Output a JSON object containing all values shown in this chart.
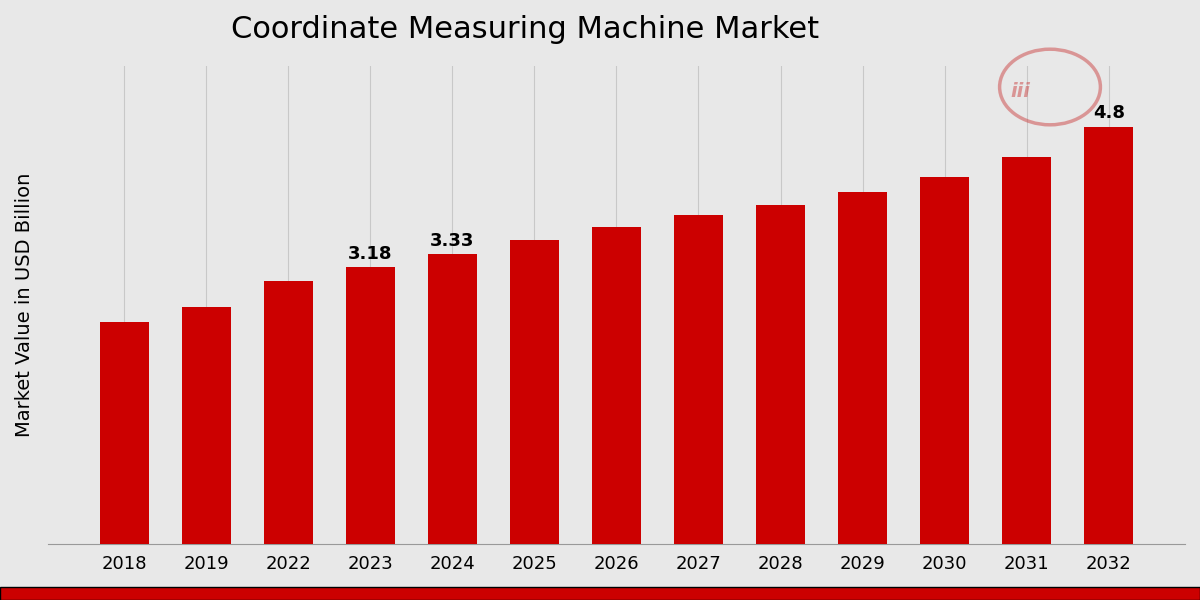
{
  "categories": [
    "2018",
    "2019",
    "2022",
    "2023",
    "2024",
    "2025",
    "2026",
    "2027",
    "2028",
    "2029",
    "2030",
    "2031",
    "2032"
  ],
  "values": [
    2.55,
    2.72,
    3.02,
    3.18,
    3.33,
    3.5,
    3.65,
    3.78,
    3.9,
    4.05,
    4.22,
    4.45,
    4.8
  ],
  "bar_color": "#CC0000",
  "labeled_bars": {
    "2023": "3.18",
    "2024": "3.33",
    "2032": "4.8"
  },
  "title": "Coordinate Measuring Machine Market",
  "ylabel": "Market Value in USD Billion",
  "bg_color": "#E8E8E8",
  "title_fontsize": 22,
  "label_fontsize": 13,
  "tick_fontsize": 13,
  "ylabel_fontsize": 14,
  "ylim": [
    0,
    5.5
  ],
  "bar_width": 0.6,
  "grid_color": "#C8C8C8"
}
